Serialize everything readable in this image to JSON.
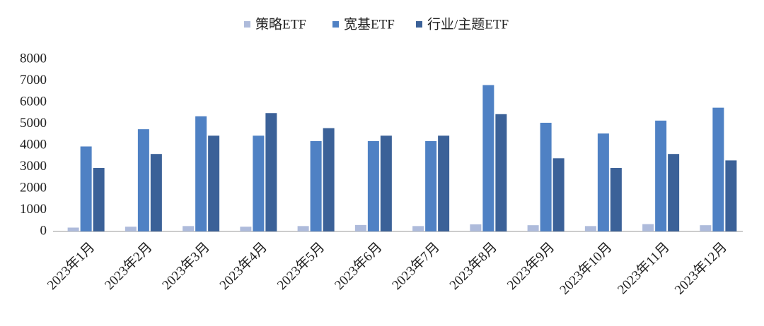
{
  "chart_data": {
    "type": "bar",
    "categories": [
      "2023年1月",
      "2023年2月",
      "2023年3月",
      "2023年4月",
      "2023年5月",
      "2023年6月",
      "2023年7月",
      "2023年8月",
      "2023年9月",
      "2023年10月",
      "2023年11月",
      "2023年12月"
    ],
    "series": [
      {
        "name": "策略ETF",
        "color": "#aebbdb",
        "values": [
          180,
          220,
          250,
          220,
          250,
          300,
          250,
          330,
          290,
          250,
          340,
          290
        ]
      },
      {
        "name": "宽基ETF",
        "color": "#4f81c4",
        "values": [
          3950,
          4750,
          5350,
          4450,
          4200,
          4200,
          4200,
          6800,
          5050,
          4550,
          5150,
          5750
        ]
      },
      {
        "name": "行业/主题ETF",
        "color": "#3b6198",
        "values": [
          2950,
          3600,
          4450,
          5500,
          4800,
          4450,
          4450,
          5450,
          3400,
          2950,
          3600,
          3300
        ]
      }
    ],
    "ylim": [
      0,
      8000
    ],
    "yticks": [
      0,
      1000,
      2000,
      3000,
      4000,
      5000,
      6000,
      7000,
      8000
    ],
    "grid": false,
    "legend": "top"
  }
}
